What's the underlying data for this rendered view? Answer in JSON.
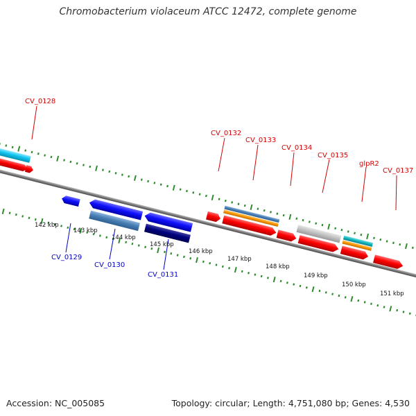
{
  "title": "Chromobacterium violaceum ATCC 12472, complete genome",
  "footer": {
    "accession": "Accession: NC_005085",
    "info": "Topology: circular; Length: 4,751,080 bp; Genes: 4,530"
  },
  "colors": {
    "forward_label": "#d40000",
    "reverse_label": "#0000cc",
    "tick": "#2e8b2e",
    "backbone": "#7a7a7a"
  },
  "ruler_labels": [
    "142 kbp",
    "143 kbp",
    "144 kbp",
    "145 kbp",
    "146 kbp",
    "147 kbp",
    "148 kbp",
    "149 kbp",
    "150 kbp",
    "151 kbp"
  ],
  "forward_genes": [
    "CV_0128",
    "CV_0132",
    "CV_0133",
    "CV_0134",
    "CV_0135",
    "glpR2",
    "CV_0137"
  ],
  "reverse_genes": [
    "CV_0129",
    "CV_0130",
    "CV_0131"
  ]
}
